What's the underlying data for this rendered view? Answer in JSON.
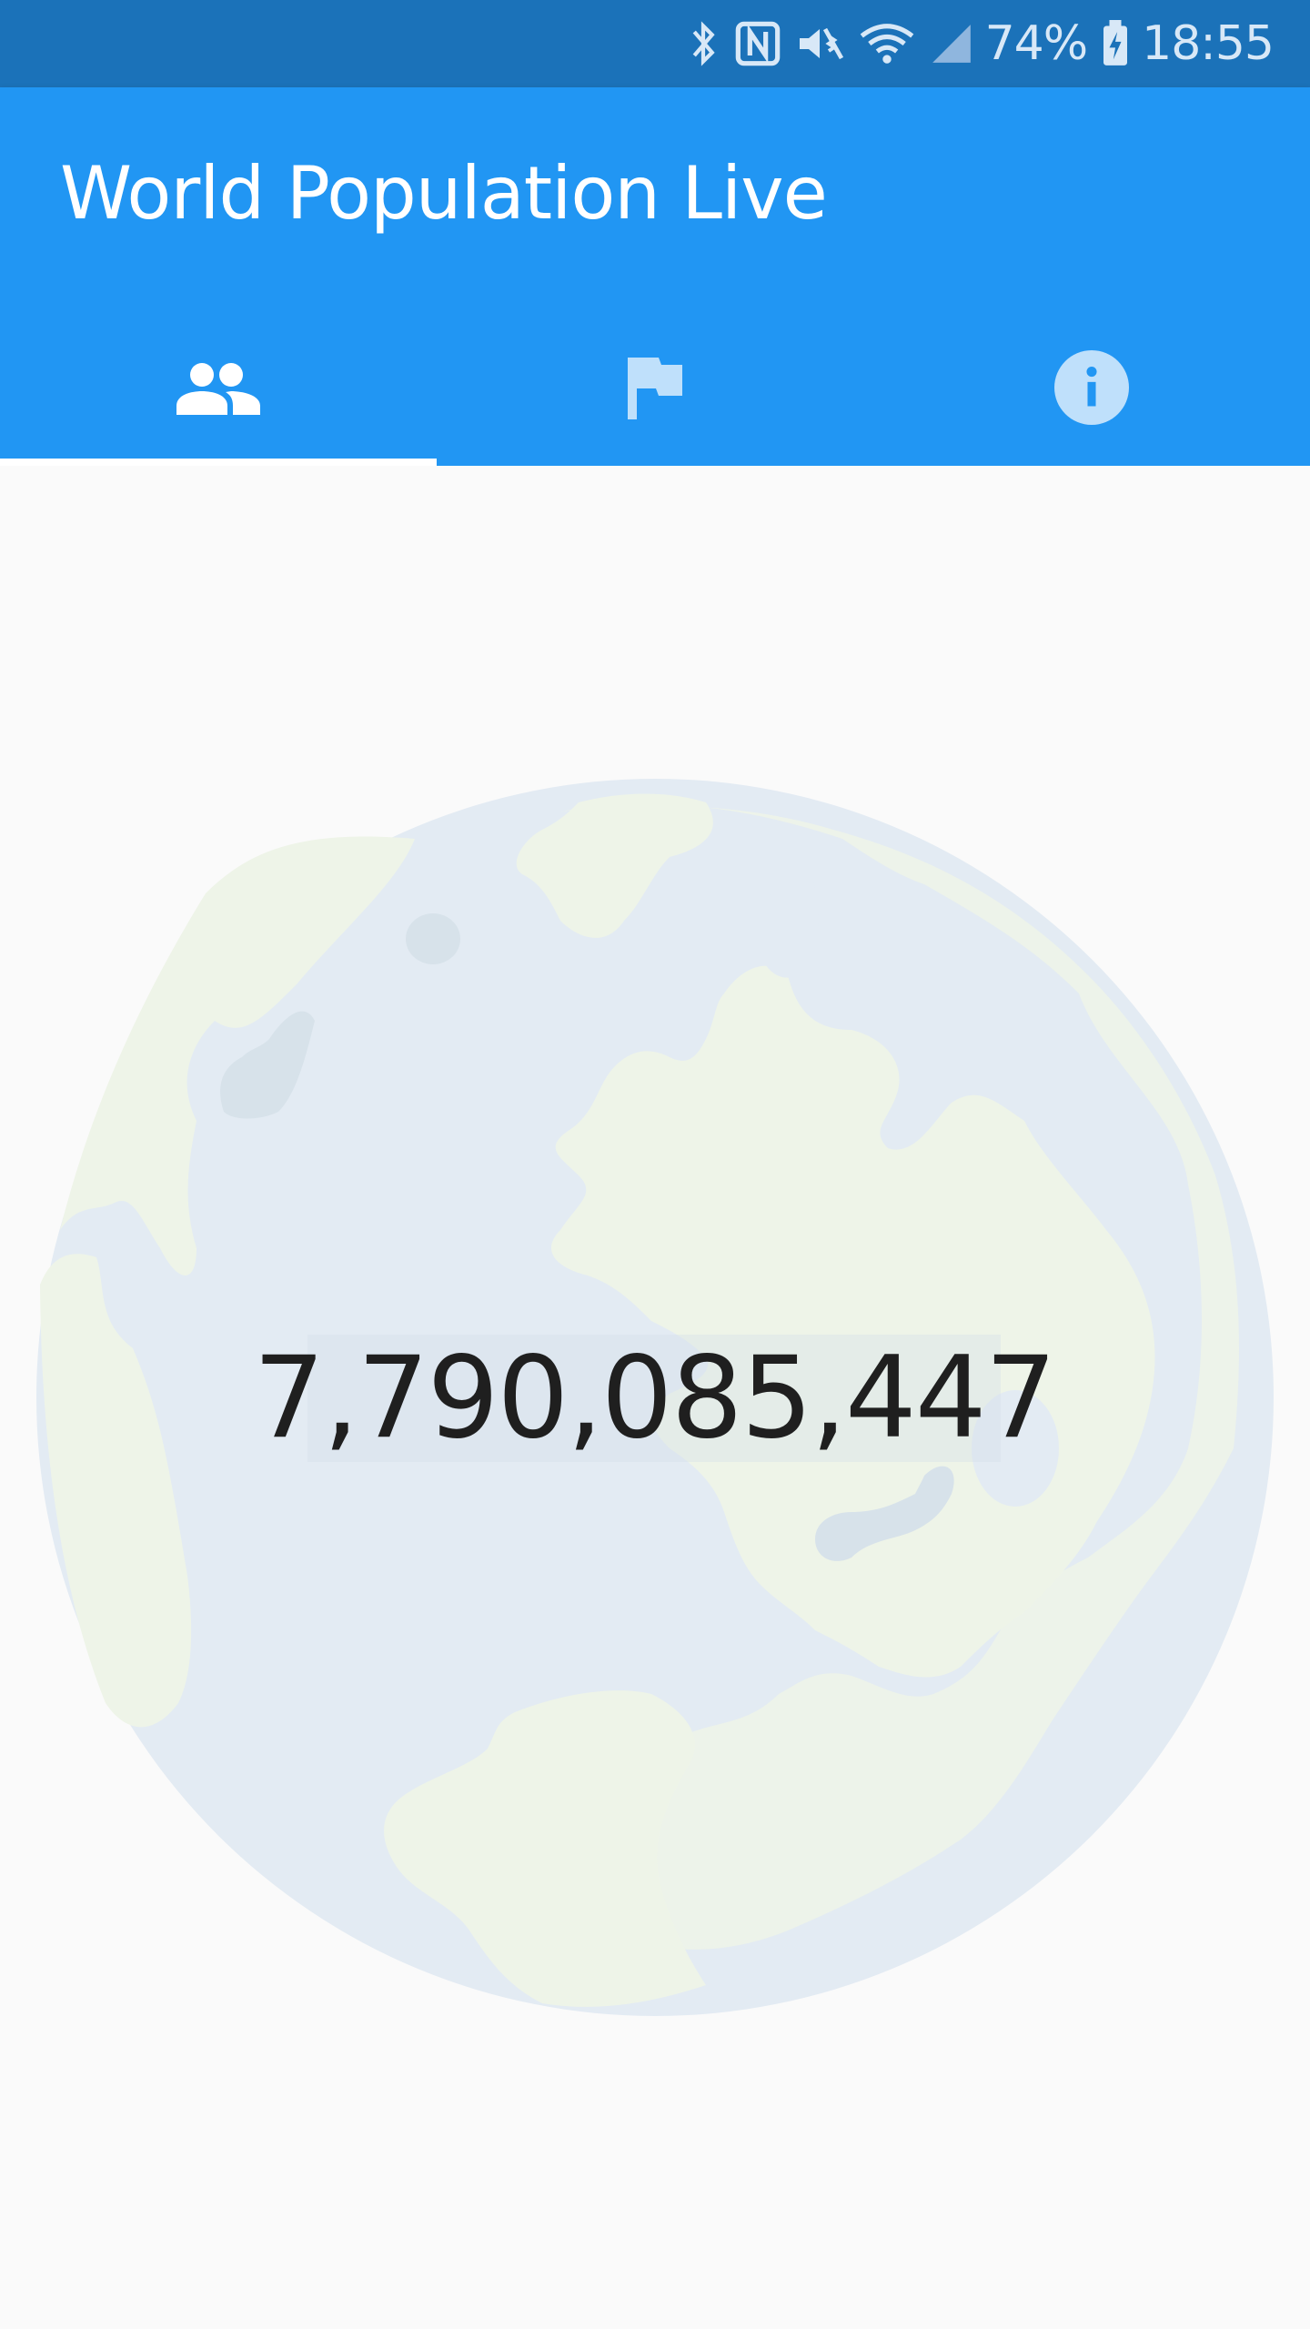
{
  "status_bar": {
    "battery": "74%",
    "time": "18:55",
    "icons": [
      "bluetooth-icon",
      "nfc-icon",
      "vibrate-icon",
      "wifi-icon",
      "signal-icon",
      "battery-charging-icon"
    ]
  },
  "app_bar": {
    "title": "World Population Live",
    "color": "#2196f3"
  },
  "tabs": [
    {
      "icon": "people-icon",
      "selected": true
    },
    {
      "icon": "flag-icon",
      "selected": false
    },
    {
      "icon": "info-icon",
      "selected": false
    }
  ],
  "main": {
    "population": "7,790,085,447",
    "background_image": "globe-illustration"
  }
}
